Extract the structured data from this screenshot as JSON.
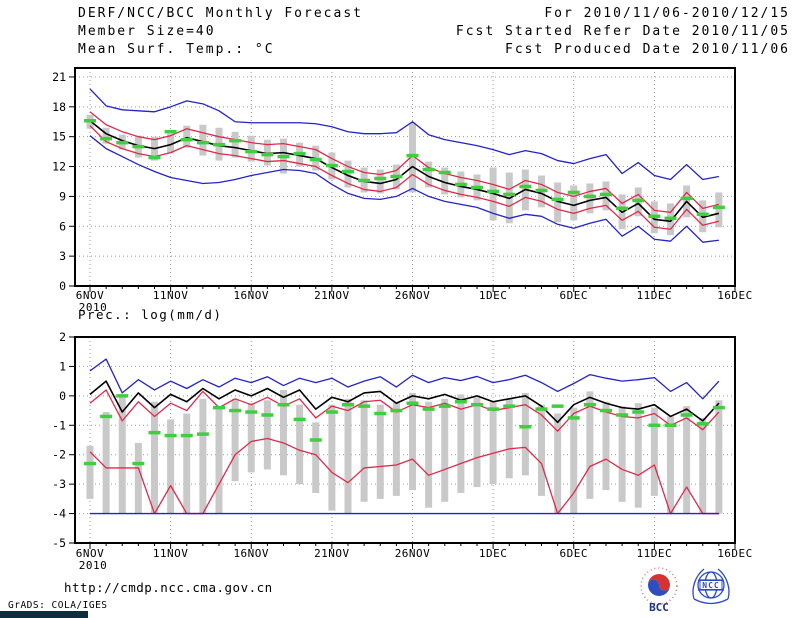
{
  "header": {
    "title": "DERF/NCC/BCC Monthly Forecast",
    "member_size": "Member Size=40",
    "variable_label": "Mean Surf. Temp.: °C",
    "for_range": "For 2010/11/06-2010/12/15",
    "fcst_started": "Fcst Started Refer Date 2010/11/05",
    "fcst_produced": "Fcst Produced Date 2010/11/06"
  },
  "footer": {
    "url": "http://cmdp.ncc.cma.gov.cn",
    "credit": "GrADS: COLA/IGES",
    "bcc_label": "BCC",
    "ncc_label": "NCC"
  },
  "colors": {
    "minmax": "#2323c8",
    "quartile": "#e0294a",
    "mean": "#000000",
    "observation": "#3ecf3e",
    "spread_bar": "#c9c9c9",
    "grid": "#999999",
    "axis": "#000000"
  },
  "chart_data": [
    {
      "type": "line",
      "title": "Mean Surf. Temp.: °C",
      "x_tick_labels": [
        "6NOV",
        "11NOV",
        "16NOV",
        "21NOV",
        "26NOV",
        "1DEC",
        "6DEC",
        "11DEC",
        "16DEC"
      ],
      "x_year": "2010",
      "x_intervals": 40,
      "n_points": 40,
      "ylim": [
        0,
        21.9
      ],
      "yticks": [
        0,
        3,
        6,
        9,
        12,
        15,
        18,
        21
      ],
      "grid": "dotted",
      "series": [
        {
          "name": "ensemble-max",
          "color_key": "minmax",
          "values": [
            19.8,
            18.1,
            17.7,
            17.6,
            17.5,
            18.0,
            18.6,
            18.3,
            17.6,
            16.5,
            16.4,
            16.4,
            16.4,
            16.4,
            16.3,
            16.0,
            15.5,
            15.3,
            15.3,
            15.4,
            16.5,
            15.2,
            14.7,
            14.4,
            14.1,
            13.7,
            13.2,
            13.6,
            13.3,
            12.6,
            12.3,
            12.8,
            13.2,
            11.3,
            12.4,
            11.1,
            10.7,
            12.2,
            10.7,
            11.0
          ]
        },
        {
          "name": "upper-quartile",
          "color_key": "quartile",
          "values": [
            17.5,
            16.2,
            15.5,
            15.0,
            14.7,
            15.1,
            15.8,
            15.4,
            15.0,
            14.7,
            14.4,
            14.2,
            14.3,
            14.0,
            13.7,
            12.8,
            12.0,
            11.4,
            11.2,
            11.6,
            13.1,
            11.9,
            11.3,
            10.9,
            10.6,
            10.2,
            9.7,
            10.6,
            10.2,
            9.4,
            9.0,
            9.5,
            9.8,
            8.3,
            9.2,
            7.6,
            7.4,
            9.4,
            7.8,
            8.2
          ]
        },
        {
          "name": "ensemble-mean",
          "color_key": "mean",
          "values": [
            16.6,
            15.3,
            14.6,
            14.1,
            13.8,
            14.2,
            14.9,
            14.5,
            14.1,
            13.9,
            13.6,
            13.3,
            13.4,
            13.1,
            12.8,
            11.9,
            11.1,
            10.5,
            10.3,
            10.7,
            12.0,
            11.0,
            10.4,
            10.0,
            9.7,
            9.3,
            8.8,
            9.7,
            9.3,
            8.5,
            8.1,
            8.6,
            8.9,
            7.4,
            8.3,
            6.7,
            6.5,
            8.5,
            6.9,
            7.3
          ]
        },
        {
          "name": "lower-quartile",
          "color_key": "quartile",
          "values": [
            16.1,
            14.5,
            13.8,
            13.3,
            13.0,
            13.4,
            14.1,
            13.7,
            13.3,
            13.1,
            12.8,
            12.5,
            12.6,
            12.3,
            12.0,
            11.1,
            10.3,
            9.7,
            9.5,
            9.9,
            11.2,
            10.2,
            9.6,
            9.2,
            8.9,
            8.5,
            8.0,
            8.9,
            8.5,
            7.7,
            7.3,
            7.8,
            8.1,
            6.6,
            7.5,
            5.9,
            5.7,
            7.7,
            6.1,
            6.5
          ]
        },
        {
          "name": "ensemble-min",
          "color_key": "minmax",
          "values": [
            15.1,
            13.8,
            13.0,
            12.2,
            11.5,
            10.9,
            10.6,
            10.3,
            10.4,
            10.7,
            11.1,
            11.4,
            11.7,
            11.6,
            11.3,
            10.2,
            9.3,
            8.8,
            8.7,
            9.0,
            9.8,
            9.0,
            8.5,
            8.2,
            7.9,
            7.3,
            6.8,
            7.2,
            7.0,
            6.2,
            5.8,
            6.3,
            6.7,
            5.0,
            6.0,
            4.7,
            4.5,
            6.0,
            4.4,
            4.6
          ]
        }
      ],
      "bars": {
        "name": "ensemble-spread",
        "low": [
          15.8,
          14.3,
          13.7,
          12.9,
          12.6,
          13.3,
          13.9,
          13.1,
          12.6,
          12.9,
          12.5,
          12.1,
          11.3,
          12.0,
          11.6,
          10.7,
          9.9,
          9.4,
          9.3,
          9.7,
          9.4,
          9.9,
          9.2,
          8.9,
          8.6,
          6.6,
          6.3,
          7.6,
          7.9,
          6.4,
          6.6,
          7.3,
          7.6,
          5.7,
          7.0,
          5.3,
          5.1,
          6.9,
          5.4,
          5.9
        ],
        "high": [
          17.2,
          15.9,
          15.2,
          15.1,
          15.0,
          15.3,
          16.1,
          16.2,
          15.9,
          15.5,
          15.1,
          14.7,
          14.8,
          14.4,
          14.1,
          13.4,
          12.6,
          11.9,
          11.7,
          12.2,
          16.4,
          12.5,
          11.9,
          11.5,
          11.2,
          11.9,
          11.4,
          11.7,
          11.1,
          10.4,
          10.1,
          10.3,
          10.5,
          9.2,
          9.9,
          8.5,
          8.3,
          10.1,
          8.6,
          9.4
        ]
      },
      "markers": {
        "name": "observation-dashes",
        "color_key": "observation",
        "values": [
          16.6,
          14.8,
          14.4,
          14.0,
          12.9,
          15.5,
          14.7,
          14.4,
          14.2,
          14.6,
          13.5,
          13.2,
          13.0,
          13.3,
          12.7,
          12.1,
          11.5,
          10.6,
          10.8,
          11.0,
          13.1,
          11.7,
          11.4,
          10.2,
          9.9,
          9.5,
          9.2,
          10.0,
          9.6,
          8.7,
          9.4,
          9.0,
          9.2,
          7.8,
          8.6,
          7.0,
          6.8,
          8.8,
          7.2,
          7.9
        ]
      }
    },
    {
      "type": "line",
      "title": "Prec.: log(mm/d)",
      "x_tick_labels": [
        "6NOV",
        "11NOV",
        "16NOV",
        "21NOV",
        "26NOV",
        "1DEC",
        "6DEC",
        "11DEC",
        "16DEC"
      ],
      "x_year": "2010",
      "x_intervals": 40,
      "n_points": 40,
      "ylim": [
        -5,
        2
      ],
      "yticks": [
        -5,
        -4,
        -3,
        -2,
        -1,
        0,
        1,
        2
      ],
      "grid": "dotted",
      "series": [
        {
          "name": "ensemble-max",
          "color_key": "minmax",
          "values": [
            0.85,
            1.25,
            0.1,
            0.55,
            0.2,
            0.5,
            0.25,
            0.55,
            0.3,
            0.6,
            0.45,
            0.65,
            0.35,
            0.6,
            0.45,
            0.6,
            0.3,
            0.5,
            0.65,
            0.3,
            0.7,
            0.45,
            0.62,
            0.52,
            0.66,
            0.45,
            0.55,
            0.7,
            0.45,
            0.15,
            0.42,
            0.72,
            0.6,
            0.5,
            0.55,
            0.62,
            0.15,
            0.45,
            -0.1,
            0.5
          ]
        },
        {
          "name": "ensemble-mean",
          "color_key": "mean",
          "values": [
            0.05,
            0.5,
            -0.55,
            0.1,
            -0.4,
            0.05,
            -0.2,
            0.25,
            -0.1,
            0.2,
            0.0,
            0.25,
            -0.05,
            0.2,
            -0.45,
            -0.05,
            -0.2,
            0.1,
            0.15,
            -0.25,
            0.0,
            -0.1,
            0.05,
            -0.15,
            0.0,
            -0.2,
            -0.1,
            0.0,
            -0.35,
            -0.9,
            -0.3,
            -0.05,
            -0.25,
            -0.4,
            -0.45,
            -0.3,
            -0.7,
            -0.45,
            -0.85,
            -0.25
          ]
        },
        {
          "name": "upper-quartile",
          "color_key": "quartile",
          "values": [
            -0.25,
            0.2,
            -0.85,
            -0.2,
            -0.7,
            -0.25,
            -0.5,
            0.15,
            -0.4,
            -0.1,
            -0.3,
            -0.05,
            -0.35,
            -0.1,
            -0.75,
            -0.35,
            -0.5,
            -0.2,
            -0.15,
            -0.55,
            -0.3,
            -0.4,
            -0.25,
            -0.45,
            -0.3,
            -0.5,
            -0.4,
            -0.3,
            -0.65,
            -1.2,
            -0.6,
            -0.35,
            -0.55,
            -0.7,
            -0.75,
            -0.6,
            -1.0,
            -0.75,
            -1.15,
            -0.55
          ]
        },
        {
          "name": "lower-quartile",
          "color_key": "quartile",
          "values": [
            -1.9,
            -2.45,
            -2.45,
            -2.45,
            -4.0,
            -3.05,
            -4.0,
            -4.0,
            -3.0,
            -2.0,
            -1.55,
            -1.45,
            -1.6,
            -1.85,
            -2.0,
            -2.6,
            -2.95,
            -2.45,
            -2.4,
            -2.35,
            -2.15,
            -2.7,
            -2.5,
            -2.3,
            -2.1,
            -1.95,
            -1.8,
            -1.75,
            -2.3,
            -4.0,
            -3.3,
            -2.4,
            -2.15,
            -2.5,
            -2.7,
            -2.35,
            -4.0,
            -3.1,
            -4.0,
            -4.0
          ]
        },
        {
          "name": "ensemble-min",
          "color_key": "minmax",
          "values": [
            -4.0,
            -4.0,
            -4.0,
            -4.0,
            -4.0,
            -4.0,
            -4.0,
            -4.0,
            -4.0,
            -4.0,
            -4.0,
            -4.0,
            -4.0,
            -4.0,
            -4.0,
            -4.0,
            -4.0,
            -4.0,
            -4.0,
            -4.0,
            -4.0,
            -4.0,
            -4.0,
            -4.0,
            -4.0,
            -4.0,
            -4.0,
            -4.0,
            -4.0,
            -4.0,
            -4.0,
            -4.0,
            -4.0,
            -4.0,
            -4.0,
            -4.0,
            -4.0,
            -4.0,
            -4.0,
            -4.0
          ]
        }
      ],
      "bars": {
        "name": "ensemble-spread",
        "low": [
          -3.5,
          -4.0,
          -4.0,
          -4.0,
          -4.0,
          -4.0,
          -4.0,
          -4.0,
          -4.0,
          -2.9,
          -2.6,
          -2.5,
          -2.7,
          -3.0,
          -3.3,
          -3.9,
          -4.0,
          -3.6,
          -3.5,
          -3.4,
          -3.2,
          -3.8,
          -3.6,
          -3.3,
          -3.1,
          -3.0,
          -2.8,
          -2.7,
          -3.4,
          -4.0,
          -4.0,
          -3.5,
          -3.2,
          -3.6,
          -3.8,
          -3.4,
          -4.0,
          -4.0,
          -4.0,
          -4.0
        ],
        "high": [
          -1.7,
          -0.55,
          0.05,
          -1.6,
          -0.2,
          -0.8,
          -0.6,
          -0.1,
          -0.35,
          -0.1,
          -0.25,
          -0.15,
          0.2,
          -0.3,
          -0.9,
          -0.3,
          -0.1,
          -0.15,
          -0.3,
          -0.2,
          0.1,
          -0.2,
          -0.1,
          0.05,
          -0.05,
          -0.2,
          -0.1,
          0.1,
          -0.3,
          -0.6,
          -0.4,
          0.15,
          -0.2,
          -0.35,
          -0.25,
          -0.4,
          -0.7,
          -0.35,
          -0.75,
          -0.15
        ]
      },
      "markers": {
        "name": "observation-dashes",
        "color_key": "observation",
        "values": [
          -2.3,
          -0.7,
          0.0,
          -2.3,
          -1.25,
          -1.35,
          -1.35,
          -1.3,
          -0.4,
          -0.5,
          -0.55,
          -0.65,
          -0.3,
          -0.8,
          -1.5,
          -0.55,
          -0.3,
          -0.35,
          -0.6,
          -0.5,
          -0.25,
          -0.45,
          -0.35,
          -0.2,
          -0.3,
          -0.45,
          -0.35,
          -1.05,
          -0.45,
          -0.35,
          -0.75,
          -0.3,
          -0.5,
          -0.65,
          -0.55,
          -1.0,
          -1.0,
          -0.65,
          -0.95,
          -0.4
        ]
      }
    }
  ]
}
